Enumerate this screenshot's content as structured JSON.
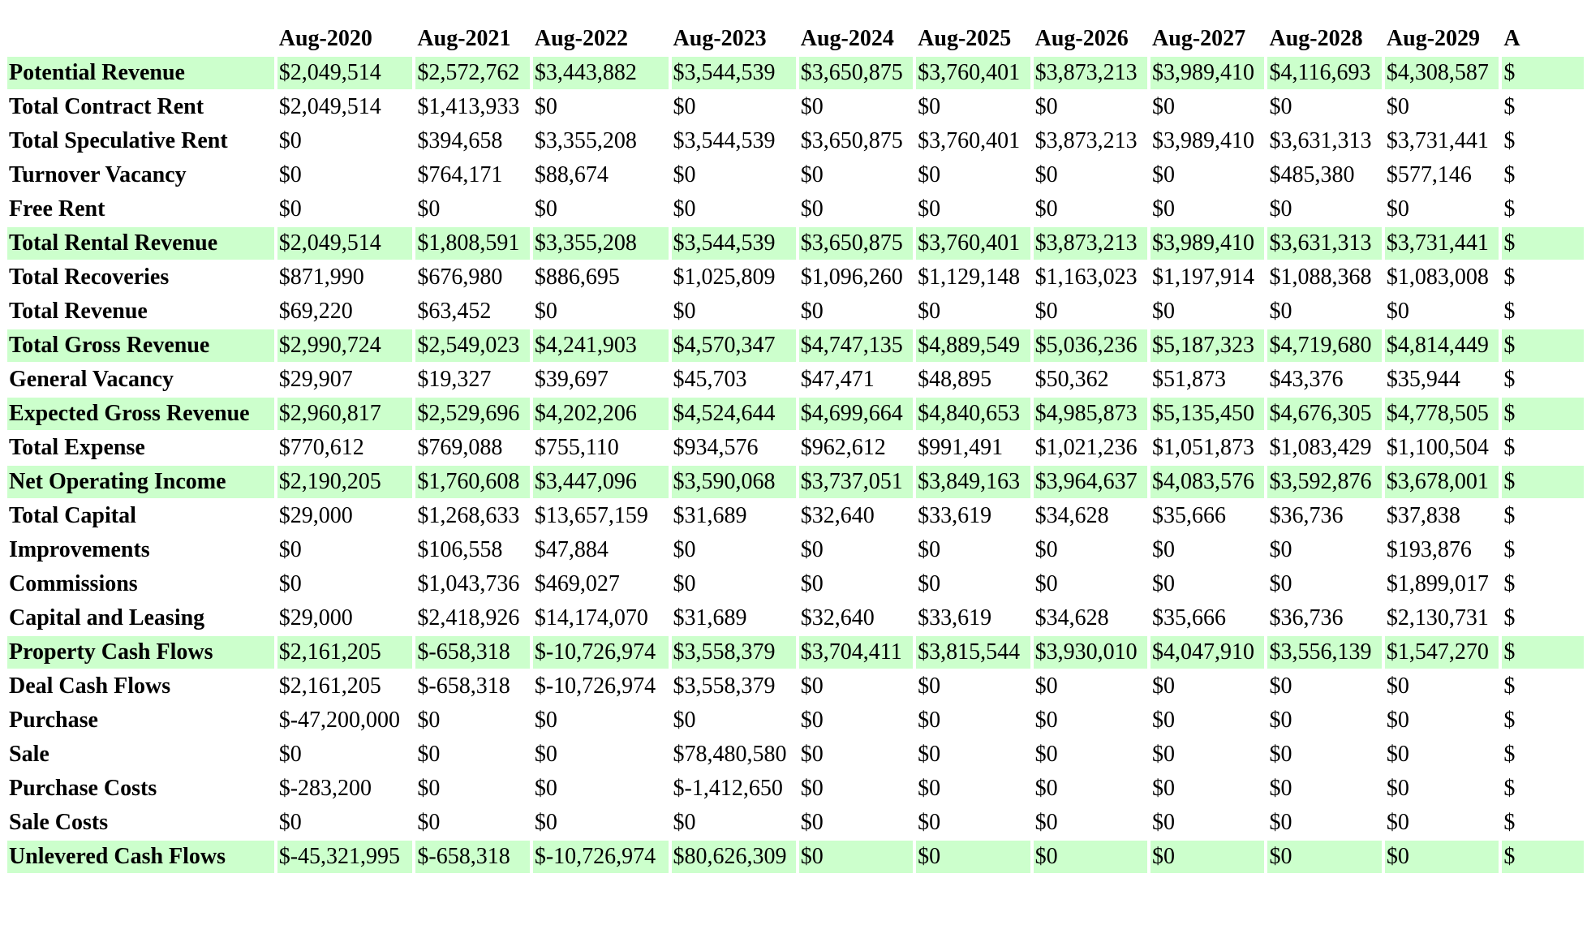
{
  "table": {
    "columns": [
      "",
      "Aug-2020",
      "Aug-2021",
      "Aug-2022",
      "Aug-2023",
      "Aug-2024",
      "Aug-2025",
      "Aug-2026",
      "Aug-2027",
      "Aug-2028",
      "Aug-2029",
      "A"
    ],
    "highlight_color": "#ccffcc",
    "rows": [
      {
        "label": "Potential Revenue",
        "highlight": true,
        "values": [
          "$2,049,514",
          "$2,572,762",
          "$3,443,882",
          "$3,544,539",
          "$3,650,875",
          "$3,760,401",
          "$3,873,213",
          "$3,989,410",
          "$4,116,693",
          "$4,308,587",
          "$"
        ]
      },
      {
        "label": "Total Contract Rent",
        "highlight": false,
        "values": [
          "$2,049,514",
          "$1,413,933",
          "$0",
          "$0",
          "$0",
          "$0",
          "$0",
          "$0",
          "$0",
          "$0",
          "$"
        ]
      },
      {
        "label": "Total Speculative Rent",
        "highlight": false,
        "values": [
          "$0",
          "$394,658",
          "$3,355,208",
          "$3,544,539",
          "$3,650,875",
          "$3,760,401",
          "$3,873,213",
          "$3,989,410",
          "$3,631,313",
          "$3,731,441",
          "$"
        ]
      },
      {
        "label": "Turnover Vacancy",
        "highlight": false,
        "values": [
          "$0",
          "$764,171",
          "$88,674",
          "$0",
          "$0",
          "$0",
          "$0",
          "$0",
          "$485,380",
          "$577,146",
          "$"
        ]
      },
      {
        "label": "Free Rent",
        "highlight": false,
        "values": [
          "$0",
          "$0",
          "$0",
          "$0",
          "$0",
          "$0",
          "$0",
          "$0",
          "$0",
          "$0",
          "$"
        ]
      },
      {
        "label": "Total Rental Revenue",
        "highlight": true,
        "values": [
          "$2,049,514",
          "$1,808,591",
          "$3,355,208",
          "$3,544,539",
          "$3,650,875",
          "$3,760,401",
          "$3,873,213",
          "$3,989,410",
          "$3,631,313",
          "$3,731,441",
          "$"
        ]
      },
      {
        "label": "Total Recoveries",
        "highlight": false,
        "values": [
          "$871,990",
          "$676,980",
          "$886,695",
          "$1,025,809",
          "$1,096,260",
          "$1,129,148",
          "$1,163,023",
          "$1,197,914",
          "$1,088,368",
          "$1,083,008",
          "$"
        ]
      },
      {
        "label": "Total Revenue",
        "highlight": false,
        "values": [
          "$69,220",
          "$63,452",
          "$0",
          "$0",
          "$0",
          "$0",
          "$0",
          "$0",
          "$0",
          "$0",
          "$"
        ]
      },
      {
        "label": "Total Gross Revenue",
        "highlight": true,
        "values": [
          "$2,990,724",
          "$2,549,023",
          "$4,241,903",
          "$4,570,347",
          "$4,747,135",
          "$4,889,549",
          "$5,036,236",
          "$5,187,323",
          "$4,719,680",
          "$4,814,449",
          "$"
        ]
      },
      {
        "label": "General Vacancy",
        "highlight": false,
        "values": [
          "$29,907",
          "$19,327",
          "$39,697",
          "$45,703",
          "$47,471",
          "$48,895",
          "$50,362",
          "$51,873",
          "$43,376",
          "$35,944",
          "$"
        ]
      },
      {
        "label": "Expected Gross Revenue",
        "highlight": true,
        "values": [
          "$2,960,817",
          "$2,529,696",
          "$4,202,206",
          "$4,524,644",
          "$4,699,664",
          "$4,840,653",
          "$4,985,873",
          "$5,135,450",
          "$4,676,305",
          "$4,778,505",
          "$"
        ]
      },
      {
        "label": "Total Expense",
        "highlight": false,
        "values": [
          "$770,612",
          "$769,088",
          "$755,110",
          "$934,576",
          "$962,612",
          "$991,491",
          "$1,021,236",
          "$1,051,873",
          "$1,083,429",
          "$1,100,504",
          "$"
        ]
      },
      {
        "label": "Net Operating Income",
        "highlight": true,
        "values": [
          "$2,190,205",
          "$1,760,608",
          "$3,447,096",
          "$3,590,068",
          "$3,737,051",
          "$3,849,163",
          "$3,964,637",
          "$4,083,576",
          "$3,592,876",
          "$3,678,001",
          "$"
        ]
      },
      {
        "label": "Total Capital",
        "highlight": false,
        "values": [
          "$29,000",
          "$1,268,633",
          "$13,657,159",
          "$31,689",
          "$32,640",
          "$33,619",
          "$34,628",
          "$35,666",
          "$36,736",
          "$37,838",
          "$"
        ]
      },
      {
        "label": "Improvements",
        "highlight": false,
        "values": [
          "$0",
          "$106,558",
          "$47,884",
          "$0",
          "$0",
          "$0",
          "$0",
          "$0",
          "$0",
          "$193,876",
          "$"
        ]
      },
      {
        "label": "Commissions",
        "highlight": false,
        "values": [
          "$0",
          "$1,043,736",
          "$469,027",
          "$0",
          "$0",
          "$0",
          "$0",
          "$0",
          "$0",
          "$1,899,017",
          "$"
        ]
      },
      {
        "label": "Capital and Leasing",
        "highlight": false,
        "values": [
          "$29,000",
          "$2,418,926",
          "$14,174,070",
          "$31,689",
          "$32,640",
          "$33,619",
          "$34,628",
          "$35,666",
          "$36,736",
          "$2,130,731",
          "$"
        ]
      },
      {
        "label": "Property Cash Flows",
        "highlight": true,
        "values": [
          "$2,161,205",
          "$-658,318",
          "$-10,726,974",
          "$3,558,379",
          "$3,704,411",
          "$3,815,544",
          "$3,930,010",
          "$4,047,910",
          "$3,556,139",
          "$1,547,270",
          "$"
        ]
      },
      {
        "label": "Deal Cash Flows",
        "highlight": false,
        "values": [
          "$2,161,205",
          "$-658,318",
          "$-10,726,974",
          "$3,558,379",
          "$0",
          "$0",
          "$0",
          "$0",
          "$0",
          "$0",
          "$"
        ]
      },
      {
        "label": "Purchase",
        "highlight": false,
        "values": [
          "$-47,200,000",
          "$0",
          "$0",
          "$0",
          "$0",
          "$0",
          "$0",
          "$0",
          "$0",
          "$0",
          "$"
        ]
      },
      {
        "label": "Sale",
        "highlight": false,
        "values": [
          "$0",
          "$0",
          "$0",
          "$78,480,580",
          "$0",
          "$0",
          "$0",
          "$0",
          "$0",
          "$0",
          "$"
        ]
      },
      {
        "label": "Purchase Costs",
        "highlight": false,
        "values": [
          "$-283,200",
          "$0",
          "$0",
          "$-1,412,650",
          "$0",
          "$0",
          "$0",
          "$0",
          "$0",
          "$0",
          "$"
        ]
      },
      {
        "label": "Sale Costs",
        "highlight": false,
        "values": [
          "$0",
          "$0",
          "$0",
          "$0",
          "$0",
          "$0",
          "$0",
          "$0",
          "$0",
          "$0",
          "$"
        ]
      },
      {
        "label": "Unlevered Cash Flows",
        "highlight": true,
        "values": [
          "$-45,321,995",
          "$-658,318",
          "$-10,726,974",
          "$80,626,309",
          "$0",
          "$0",
          "$0",
          "$0",
          "$0",
          "$0",
          "$"
        ]
      }
    ]
  }
}
